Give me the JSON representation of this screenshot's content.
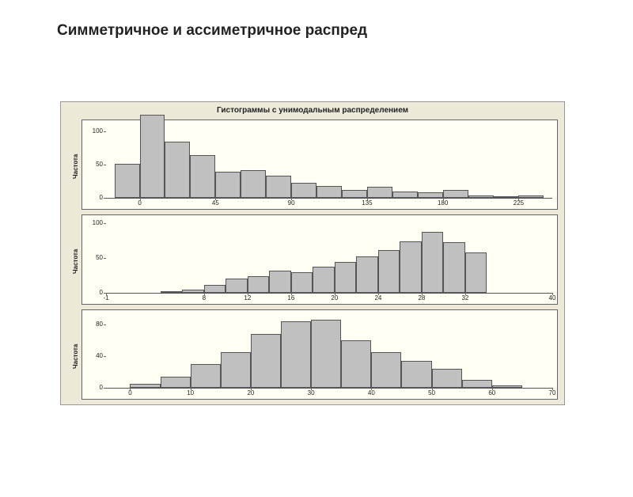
{
  "page_title": "Симметричное и ассиметричное распред",
  "figure": {
    "title": "Гистограммы с унимодальным распределением",
    "background": "#ece9d8",
    "panel_bg": "#fffff4",
    "bar_fill": "#c0c0c0",
    "bar_border": "#555555",
    "text_color": "#222222",
    "title_fontsize": 10,
    "tick_fontsize": 8,
    "ylabel_fontsize": 8,
    "panels": [
      {
        "ylabel": "Частота",
        "ylim": [
          0,
          110
        ],
        "yticks": [
          0,
          50,
          100
        ],
        "xlim": [
          -20,
          245
        ],
        "xticks": [
          0,
          45,
          90,
          135,
          180,
          225
        ],
        "bin_edges": [
          -15,
          0,
          15,
          30,
          45,
          60,
          75,
          90,
          105,
          120,
          135,
          150,
          165,
          180,
          195,
          210,
          225,
          240
        ],
        "values": [
          52,
          125,
          85,
          65,
          40,
          42,
          33,
          23,
          18,
          12,
          17,
          10,
          8,
          12,
          4,
          2,
          4
        ]
      },
      {
        "ylabel": "Частота",
        "ylim": [
          0,
          105
        ],
        "yticks": [
          0,
          50,
          100
        ],
        "xlim": [
          -1,
          40
        ],
        "xticks": [
          -1,
          8,
          12,
          16,
          20,
          24,
          28,
          32,
          40
        ],
        "bin_edges": [
          4,
          6,
          8,
          10,
          12,
          14,
          16,
          18,
          20,
          22,
          24,
          26,
          28,
          30,
          32,
          34
        ],
        "values": [
          2,
          5,
          12,
          20,
          24,
          32,
          30,
          38,
          44,
          52,
          62,
          74,
          88,
          73,
          58
        ]
      },
      {
        "ylabel": "Частота",
        "ylim": [
          0,
          92
        ],
        "yticks": [
          0,
          40,
          80
        ],
        "xlim": [
          -4,
          70
        ],
        "xticks": [
          0,
          10,
          20,
          30,
          40,
          50,
          60,
          70
        ],
        "bin_edges": [
          0,
          5,
          10,
          15,
          20,
          25,
          30,
          35,
          40,
          45,
          50,
          55,
          60,
          65
        ],
        "values": [
          5,
          14,
          30,
          45,
          68,
          84,
          86,
          60,
          45,
          34,
          24,
          10,
          3
        ]
      }
    ]
  }
}
